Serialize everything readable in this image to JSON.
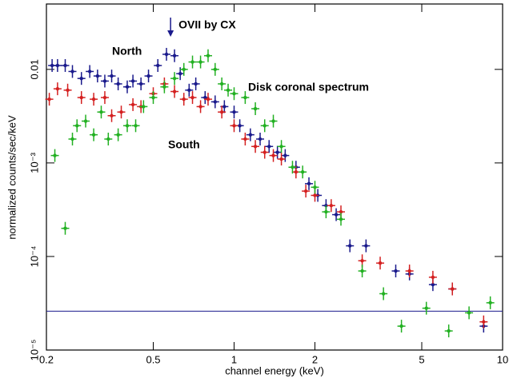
{
  "chart_data": {
    "type": "scatter",
    "x_label": "channel energy (keV)",
    "y_label": "normalized counts/sec/keV",
    "xscale": "log",
    "yscale": "log",
    "xlim": [
      0.2,
      10
    ],
    "ylim": [
      1e-05,
      0.05
    ],
    "xticks": [
      0.2,
      0.5,
      1,
      2,
      5,
      10
    ],
    "yticks": [
      {
        "value": 1e-05,
        "label": "10⁻⁵"
      },
      {
        "value": 0.0001,
        "label": "10⁻⁴"
      },
      {
        "value": 0.001,
        "label": "10⁻³"
      },
      0.01
    ],
    "annotation": {
      "text": "OVII  by CX",
      "x": 0.58
    },
    "hline": {
      "value": 2.6e-05,
      "color": "#1a1a8c"
    },
    "series": [
      {
        "name": "North",
        "color": "#1a1a8c",
        "x": [
          0.21,
          0.22,
          0.235,
          0.25,
          0.27,
          0.29,
          0.31,
          0.33,
          0.35,
          0.37,
          0.4,
          0.42,
          0.45,
          0.48,
          0.52,
          0.56,
          0.6,
          0.63,
          0.68,
          0.72,
          0.78,
          0.85,
          0.92,
          1.0,
          1.05,
          1.15,
          1.25,
          1.35,
          1.45,
          1.55,
          1.7,
          1.9,
          2.05,
          2.2,
          2.4,
          2.7,
          3.1,
          4.0,
          4.5,
          5.5,
          6.5,
          8.5
        ],
        "values": [
          0.011,
          0.011,
          0.011,
          0.0095,
          0.008,
          0.0095,
          0.0085,
          0.0075,
          0.0085,
          0.007,
          0.0065,
          0.0075,
          0.007,
          0.0085,
          0.011,
          0.0145,
          0.014,
          0.009,
          0.006,
          0.007,
          0.005,
          0.0045,
          0.004,
          0.0035,
          0.0025,
          0.002,
          0.0018,
          0.0015,
          0.0013,
          0.0012,
          0.0009,
          0.0006,
          0.00045,
          0.00035,
          0.00028,
          0.00013,
          0.00013,
          7e-05,
          6.5e-05,
          5e-05,
          4.5e-05,
          1.8e-05
        ]
      },
      {
        "name": "South",
        "color": "#d42020",
        "x": [
          0.205,
          0.22,
          0.24,
          0.27,
          0.3,
          0.33,
          0.35,
          0.38,
          0.42,
          0.45,
          0.5,
          0.55,
          0.6,
          0.65,
          0.7,
          0.75,
          0.8,
          0.9,
          1.0,
          1.1,
          1.2,
          1.3,
          1.4,
          1.5,
          1.7,
          1.85,
          2.0,
          2.3,
          2.5,
          3.0,
          3.5,
          4.5,
          5.5,
          6.5,
          8.5
        ],
        "values": [
          0.0048,
          0.0062,
          0.006,
          0.005,
          0.0048,
          0.005,
          0.0032,
          0.0035,
          0.0042,
          0.004,
          0.0055,
          0.007,
          0.0058,
          0.0048,
          0.005,
          0.004,
          0.0048,
          0.0035,
          0.0025,
          0.0018,
          0.0015,
          0.0013,
          0.0012,
          0.0011,
          0.0008,
          0.0005,
          0.00045,
          0.00035,
          0.0003,
          9e-05,
          8.5e-05,
          7e-05,
          6e-05,
          4.5e-05,
          2e-05
        ]
      },
      {
        "name": "Disk coronal spectrum",
        "color": "#22b022",
        "x": [
          0.215,
          0.235,
          0.25,
          0.26,
          0.28,
          0.3,
          0.32,
          0.34,
          0.37,
          0.4,
          0.43,
          0.46,
          0.5,
          0.55,
          0.6,
          0.65,
          0.7,
          0.75,
          0.8,
          0.85,
          0.9,
          0.95,
          1.0,
          1.1,
          1.2,
          1.3,
          1.4,
          1.5,
          1.65,
          1.8,
          2.0,
          2.2,
          2.5,
          3.0,
          3.6,
          4.2,
          5.2,
          6.3,
          7.5,
          9.0
        ],
        "values": [
          0.0012,
          0.0002,
          0.0018,
          0.0025,
          0.0028,
          0.002,
          0.0035,
          0.0018,
          0.002,
          0.0025,
          0.0025,
          0.004,
          0.005,
          0.0065,
          0.008,
          0.01,
          0.012,
          0.012,
          0.014,
          0.01,
          0.007,
          0.006,
          0.0055,
          0.005,
          0.0038,
          0.0025,
          0.0028,
          0.0015,
          0.0009,
          0.0008,
          0.00055,
          0.0003,
          0.00025,
          7e-05,
          4e-05,
          1.8e-05,
          2.8e-05,
          1.6e-05,
          2.5e-05,
          3.2e-05
        ]
      }
    ]
  }
}
